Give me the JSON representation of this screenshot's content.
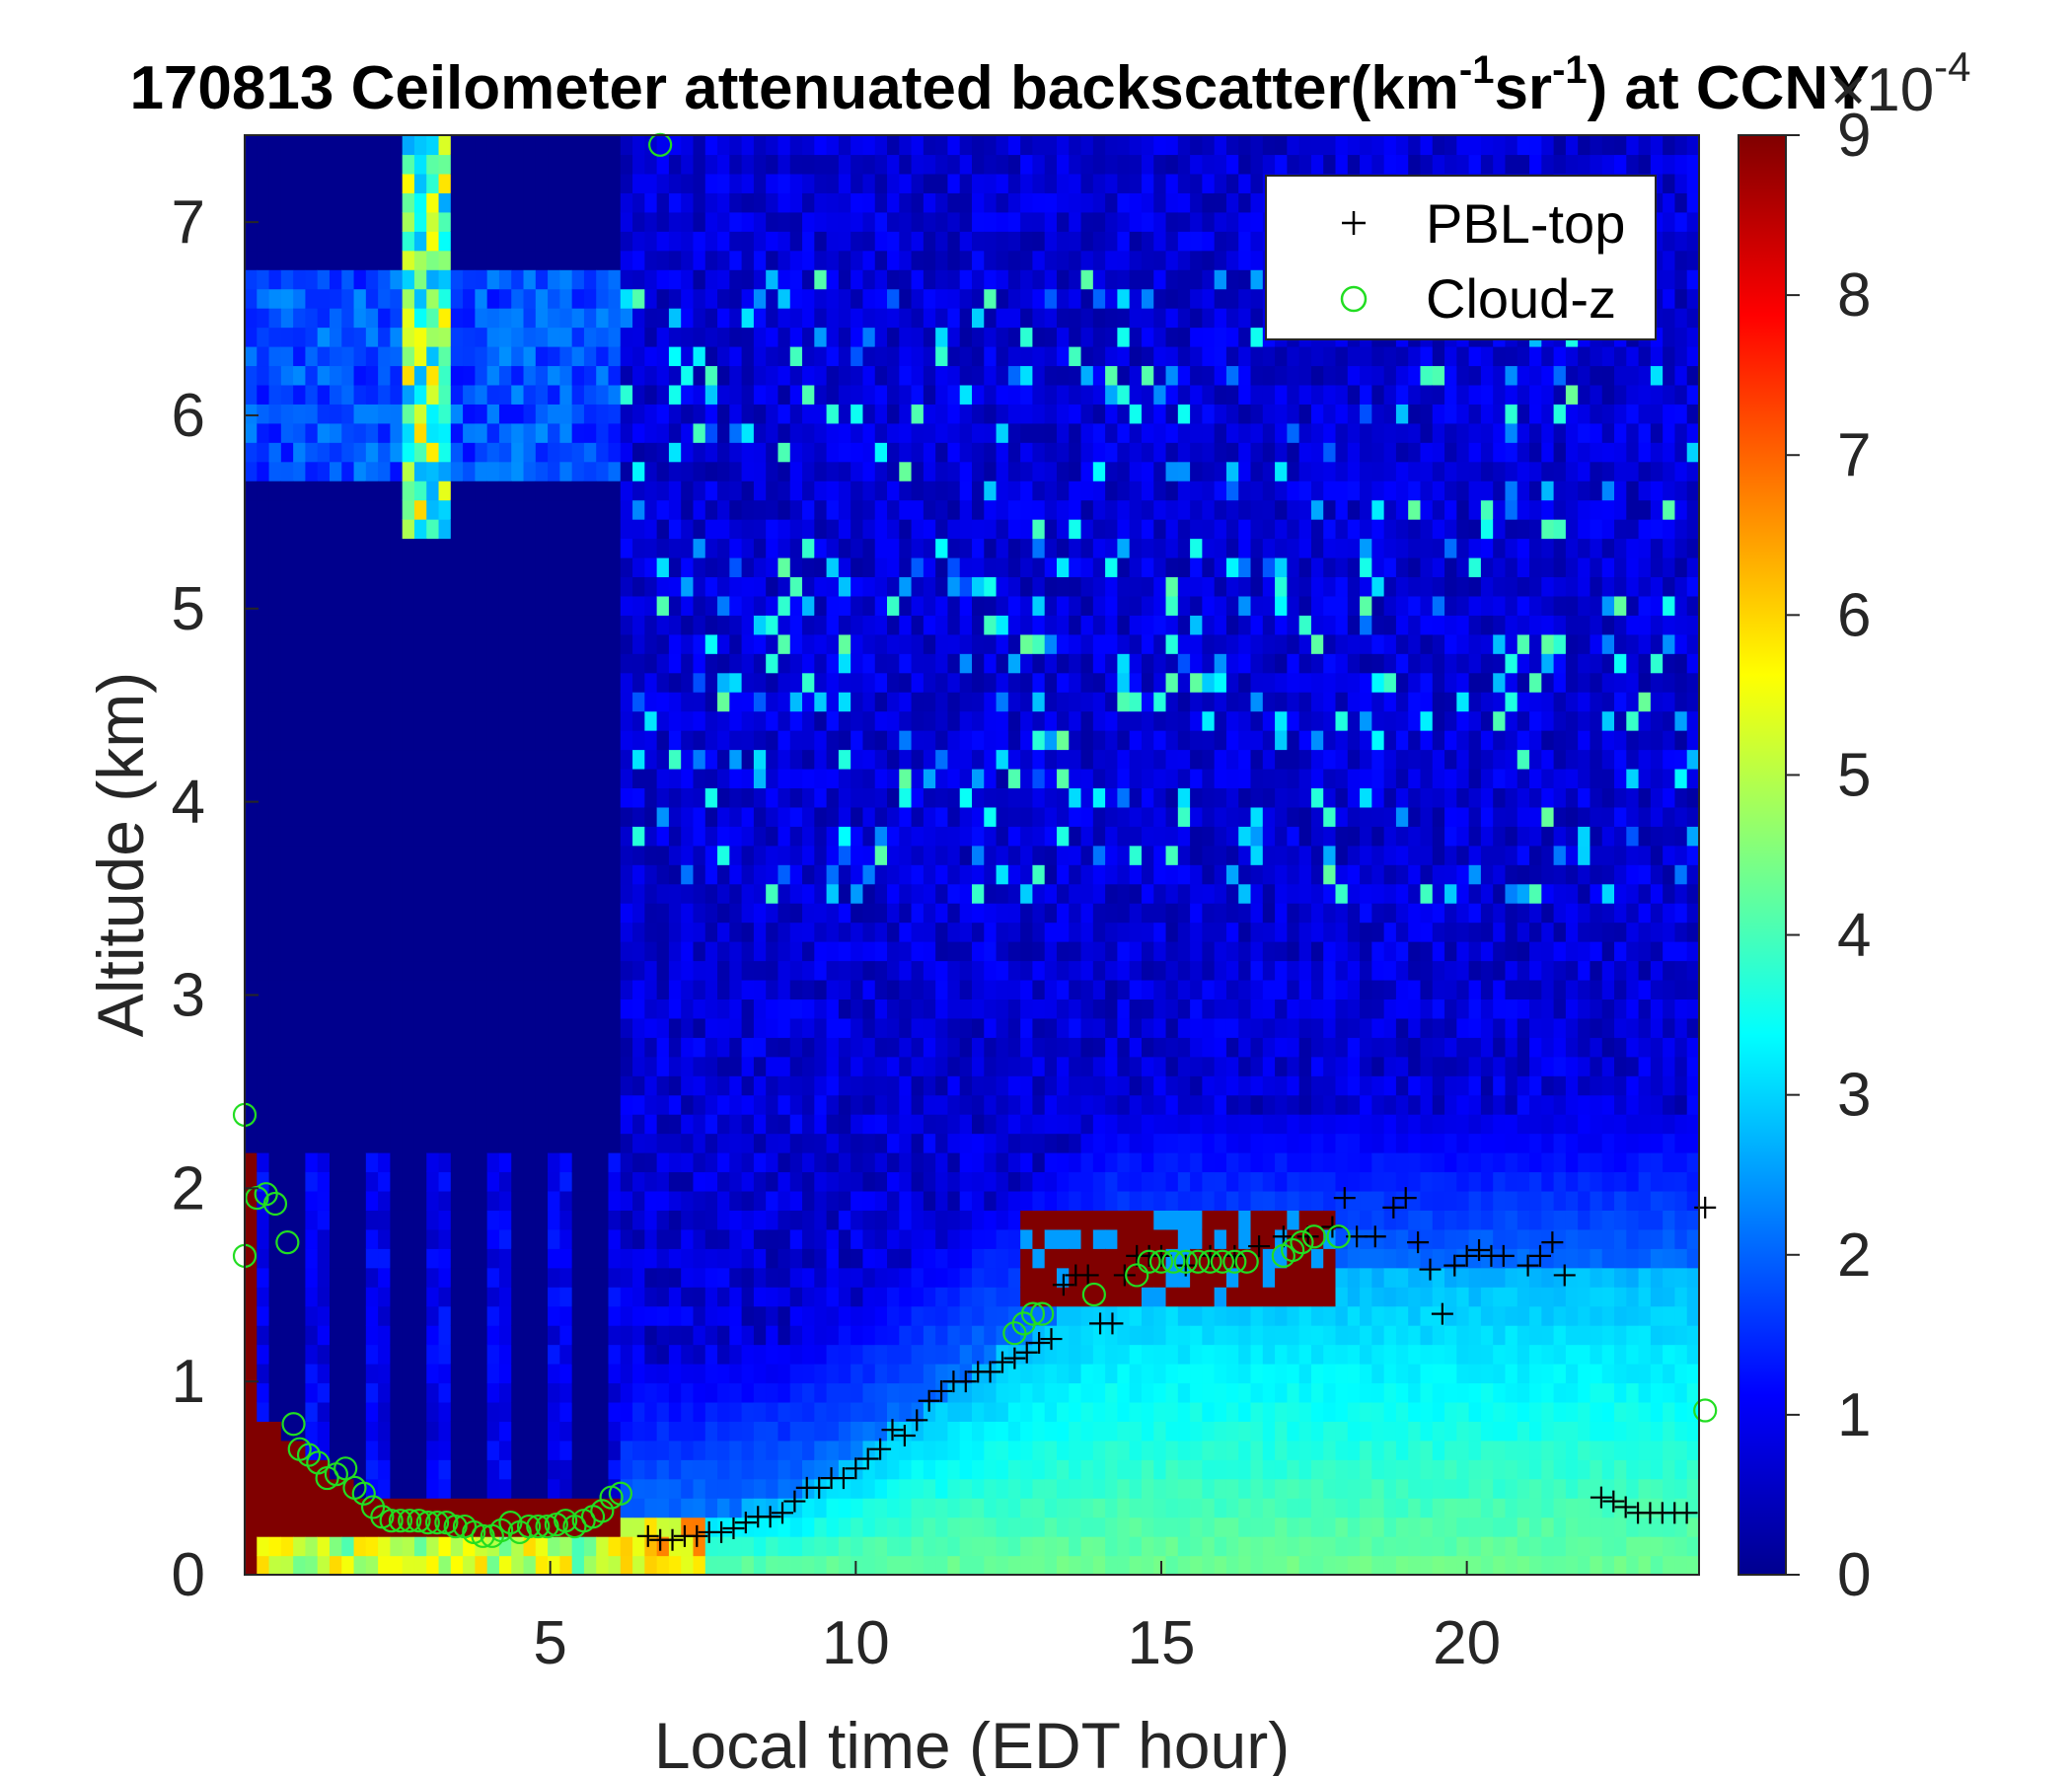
{
  "chart_data": {
    "type": "heatmap",
    "title": {
      "main": "170813 Ceilometer attenuated backscatter(km",
      "sup1": "-1",
      "mid": "sr",
      "sup2": "-1",
      "end": ") at CCNY"
    },
    "xlabel": "Local time (EDT hour)",
    "ylabel": "Altitude (km)",
    "xlim": [
      0,
      23.8
    ],
    "ylim": [
      0,
      7.45
    ],
    "xticks": [
      "5",
      "10",
      "15",
      "20"
    ],
    "yticks": [
      "0",
      "1",
      "2",
      "3",
      "4",
      "5",
      "6",
      "7"
    ],
    "colorbar": {
      "min": 0,
      "max": 9,
      "ticks": [
        "0",
        "1",
        "2",
        "3",
        "4",
        "5",
        "6",
        "7",
        "8",
        "9"
      ],
      "exponent_base": "×10",
      "exponent": "-4",
      "colormap": "jet"
    },
    "legend": {
      "position": "top-right",
      "entries": [
        {
          "label": "PBL-top",
          "marker": "plus",
          "color": "#000000"
        },
        {
          "label": "Cloud-z",
          "marker": "circle",
          "color": "#22dd22"
        }
      ]
    },
    "series": [
      {
        "name": "PBL-top",
        "x": [
          6.6,
          6.8,
          7.0,
          7.2,
          7.4,
          7.6,
          7.8,
          8.0,
          8.2,
          8.4,
          8.6,
          8.8,
          9.0,
          9.2,
          9.4,
          9.6,
          9.8,
          10.0,
          10.2,
          10.4,
          10.6,
          10.8,
          11.0,
          11.2,
          11.4,
          11.6,
          11.8,
          12.0,
          12.2,
          12.4,
          12.6,
          12.8,
          13.0,
          13.2,
          13.4,
          13.6,
          13.8,
          14.0,
          14.2,
          14.4,
          14.6,
          14.8,
          15.0,
          15.4,
          15.8,
          16.2,
          16.6,
          17.0,
          17.4,
          17.8,
          18.0,
          18.2,
          18.5,
          18.8,
          19.0,
          19.2,
          19.4,
          19.6,
          19.8,
          20.0,
          20.2,
          20.4,
          20.6,
          21.0,
          21.2,
          21.4,
          21.6,
          22.2,
          22.4,
          22.6,
          22.8,
          23.0,
          23.2,
          23.4,
          23.6,
          23.9
        ],
        "y": [
          0.2,
          0.18,
          0.18,
          0.2,
          0.2,
          0.22,
          0.22,
          0.24,
          0.27,
          0.3,
          0.3,
          0.32,
          0.38,
          0.45,
          0.45,
          0.5,
          0.5,
          0.55,
          0.6,
          0.65,
          0.75,
          0.72,
          0.8,
          0.9,
          0.95,
          1.0,
          1.0,
          1.05,
          1.05,
          1.1,
          1.12,
          1.15,
          1.2,
          1.22,
          1.5,
          1.55,
          1.55,
          1.3,
          1.3,
          1.55,
          1.65,
          1.65,
          1.65,
          1.6,
          1.65,
          1.65,
          1.7,
          1.75,
          1.75,
          1.8,
          1.95,
          1.75,
          1.75,
          1.9,
          1.95,
          1.72,
          1.58,
          1.35,
          1.6,
          1.65,
          1.68,
          1.65,
          1.65,
          1.6,
          1.65,
          1.72,
          1.55,
          0.4,
          0.38,
          0.35,
          0.32,
          0.32,
          0.32,
          0.32,
          0.32,
          1.9
        ]
      },
      {
        "name": "Cloud-z",
        "x": [
          0.0,
          0.2,
          0.35,
          0.5,
          0.7,
          0.8,
          0.9,
          1.05,
          1.2,
          1.35,
          1.5,
          1.65,
          1.8,
          1.95,
          2.1,
          2.25,
          2.4,
          2.55,
          2.7,
          2.85,
          3.0,
          3.15,
          3.3,
          3.45,
          3.6,
          3.75,
          3.9,
          4.05,
          4.2,
          4.35,
          4.5,
          4.65,
          4.8,
          4.95,
          5.1,
          5.25,
          5.4,
          5.55,
          5.7,
          5.85,
          6.0,
          6.15,
          6.8,
          12.6,
          12.75,
          12.9,
          13.05,
          13.9,
          14.6,
          14.8,
          15.0,
          15.2,
          15.4,
          15.6,
          15.8,
          16.0,
          16.2,
          16.4,
          17.0,
          17.15,
          17.3,
          17.5,
          17.9,
          0.0,
          23.9
        ],
        "y": [
          1.65,
          1.95,
          1.97,
          1.92,
          1.72,
          0.78,
          0.65,
          0.62,
          0.58,
          0.5,
          0.52,
          0.55,
          0.45,
          0.42,
          0.35,
          0.3,
          0.28,
          0.28,
          0.28,
          0.28,
          0.27,
          0.27,
          0.27,
          0.25,
          0.25,
          0.22,
          0.2,
          0.2,
          0.23,
          0.27,
          0.22,
          0.25,
          0.25,
          0.25,
          0.26,
          0.28,
          0.25,
          0.28,
          0.3,
          0.33,
          0.4,
          0.42,
          7.4,
          1.25,
          1.3,
          1.35,
          1.35,
          1.45,
          1.55,
          1.62,
          1.62,
          1.62,
          1.62,
          1.62,
          1.62,
          1.62,
          1.62,
          1.62,
          1.65,
          1.68,
          1.72,
          1.75,
          1.75,
          2.38,
          0.85
        ]
      }
    ]
  }
}
